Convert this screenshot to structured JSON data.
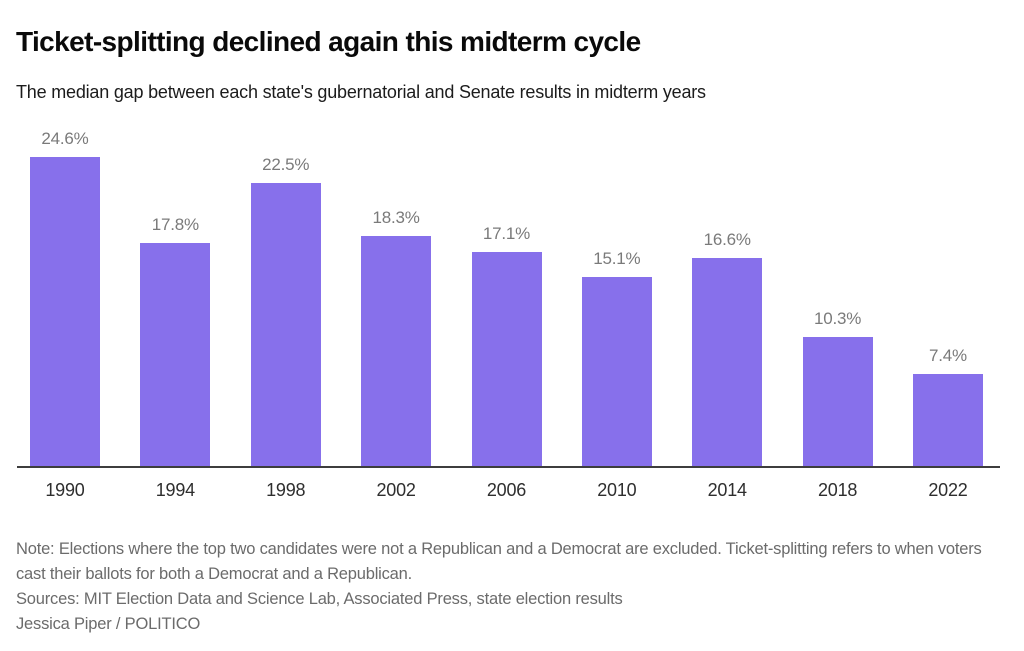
{
  "header": {
    "title": "Ticket-splitting declined again this midterm cycle",
    "subtitle": "The median gap between each state's gubernatorial and Senate results in midterm years"
  },
  "chart_data": {
    "type": "bar",
    "title": "Ticket-splitting declined again this midterm cycle",
    "subtitle": "The median gap between each state's gubernatorial and Senate results in midterm years",
    "categories": [
      "1990",
      "1994",
      "1998",
      "2002",
      "2006",
      "2010",
      "2014",
      "2018",
      "2022"
    ],
    "values": [
      24.6,
      17.8,
      22.5,
      18.3,
      17.1,
      15.1,
      16.6,
      10.3,
      7.4
    ],
    "value_labels": [
      "24.6%",
      "17.8%",
      "22.5%",
      "18.3%",
      "17.1%",
      "15.1%",
      "16.6%",
      "10.3%",
      "7.4%"
    ],
    "xlabel": "",
    "ylabel": "",
    "ylim": [
      0,
      27.5
    ],
    "grid": false,
    "legend_position": "none",
    "bar_color": "#8770EB",
    "value_label_color": "#7a7a7a",
    "axis_line_color": "#3d3d3d"
  },
  "footer": {
    "note": "Note: Elections where the top two candidates were not a Republican and a Democrat are excluded. Ticket-splitting refers to when voters cast their ballots for both a Democrat and a Republican.",
    "sources": "Sources: MIT Election Data and Science Lab, Associated Press, state election results",
    "byline": "Jessica Piper / POLITICO"
  },
  "colors": {
    "background": "#ffffff",
    "title_text": "#0a0a0a",
    "subtitle_text": "#1c1c1c",
    "bar": "#8770EB",
    "value_label": "#7a7a7a",
    "x_tick_label": "#2e2e2e",
    "axis_line": "#3d3d3d",
    "footer_text": "#6b6b6b"
  }
}
